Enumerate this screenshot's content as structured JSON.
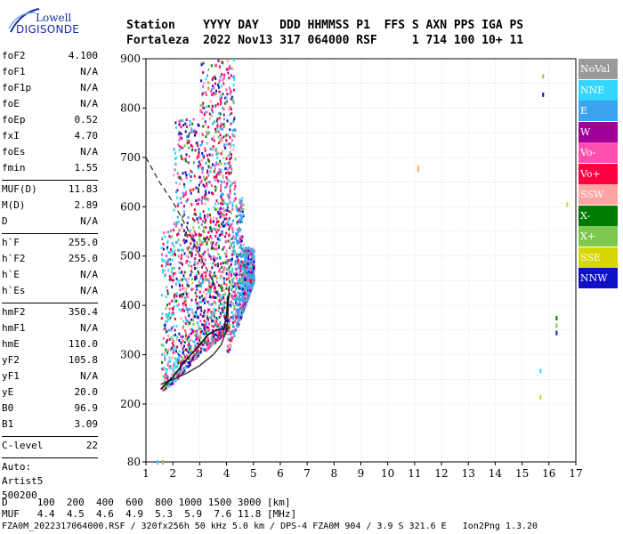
{
  "logo": {
    "line1": "Lowell",
    "line2": "DIGISONDE"
  },
  "header": {
    "line1": "Station    YYYY DAY   DDD HHMMSS P1  FFS S AXN PPS IGA PS",
    "line2": "Fortaleza  2022 Nov13 317 064000 RSF     1 714 100 10+ 11"
  },
  "params": [
    {
      "k": "foF2",
      "v": "4.100"
    },
    {
      "k": "foF1",
      "v": "N/A"
    },
    {
      "k": "foF1p",
      "v": "N/A"
    },
    {
      "k": "foE",
      "v": "N/A"
    },
    {
      "k": "foEp",
      "v": "0.52"
    },
    {
      "k": "fxI",
      "v": "4.70"
    },
    {
      "k": "foEs",
      "v": "N/A"
    },
    {
      "k": "fmin",
      "v": "1.55"
    },
    {
      "k": "MUF(D)",
      "v": "11.83"
    },
    {
      "k": "M(D)",
      "v": "2.89"
    },
    {
      "k": "D",
      "v": "N/A"
    },
    {
      "k": "h`F",
      "v": "255.0"
    },
    {
      "k": "h`F2",
      "v": "255.0"
    },
    {
      "k": "h`E",
      "v": "N/A"
    },
    {
      "k": "h`Es",
      "v": "N/A"
    },
    {
      "k": "hmF2",
      "v": "350.4"
    },
    {
      "k": "hmF1",
      "v": "N/A"
    },
    {
      "k": "hmE",
      "v": "110.0"
    },
    {
      "k": "yF2",
      "v": "105.8"
    },
    {
      "k": "yF1",
      "v": "N/A"
    },
    {
      "k": "yE",
      "v": "20.0"
    },
    {
      "k": "B0",
      "v": "96.9"
    },
    {
      "k": "B1",
      "v": "3.09"
    },
    {
      "k": "C-level",
      "v": "22"
    }
  ],
  "auto": {
    "line1": "Auto:",
    "line2": "Artist5",
    "line3": "500200"
  },
  "legend": [
    {
      "label": "NoVal",
      "color": "#9a9a9a"
    },
    {
      "label": "NNE",
      "color": "#33d6ff"
    },
    {
      "label": "E",
      "color": "#3aa4f0"
    },
    {
      "label": "W",
      "color": "#a0009a"
    },
    {
      "label": "Vo-",
      "color": "#ff4fb0"
    },
    {
      "label": "Vo+",
      "color": "#ff0040"
    },
    {
      "label": "SSW",
      "color": "#ffa3a3"
    },
    {
      "label": "X-",
      "color": "#007a00"
    },
    {
      "label": "X+",
      "color": "#7ec850"
    },
    {
      "label": "SSE",
      "color": "#d6d600"
    },
    {
      "label": "NNW",
      "color": "#1010c8"
    }
  ],
  "bottom": {
    "line1": "D     100  200  400  600  800 1000 1500 3000 [km]",
    "line2": "MUF   4.4  4.5  4.6  4.9  5.3  5.9  7.6 11.8 [MHz]"
  },
  "footer": "FZA0M_2022317064000.RSF / 320fx256h 50 kHz 5.0 km / DPS-4 FZA0M 904 / 3.9 S 321.6 E   Ion2Png 1.3.20",
  "chart_data": {
    "type": "scatter",
    "xlabel": "",
    "ylabel": "",
    "xlim": [
      1,
      17
    ],
    "ylim": [
      80,
      900
    ],
    "xticks": [
      "1",
      "2",
      "3",
      "4",
      "5",
      "6",
      "7",
      "8",
      "9",
      "10",
      "11",
      "12",
      "13",
      "14",
      "15",
      "16",
      "17"
    ],
    "yticks": [
      "80",
      "200",
      "300",
      "400",
      "500",
      "600",
      "700",
      "800",
      "900"
    ],
    "grid": true,
    "legend_position": "right",
    "profile_solid": [
      [
        1.55,
        240
      ],
      [
        2.0,
        250
      ],
      [
        2.5,
        262
      ],
      [
        3.0,
        278
      ],
      [
        3.5,
        300
      ],
      [
        3.8,
        320
      ],
      [
        4.0,
        350
      ],
      [
        4.05,
        380
      ],
      [
        4.08,
        420
      ],
      [
        4.1,
        440
      ]
    ],
    "profile_dashed": [
      [
        1.0,
        700
      ],
      [
        1.5,
        650
      ],
      [
        2.0,
        610
      ],
      [
        2.5,
        560
      ],
      [
        3.0,
        500
      ],
      [
        3.5,
        450
      ],
      [
        3.8,
        400
      ],
      [
        4.0,
        360
      ],
      [
        4.05,
        340
      ]
    ],
    "trace_black": [
      [
        1.55,
        230
      ],
      [
        2.0,
        255
      ],
      [
        2.5,
        290
      ],
      [
        3.0,
        320
      ],
      [
        3.3,
        340
      ],
      [
        3.6,
        350
      ],
      [
        3.9,
        352
      ],
      [
        4.0,
        380
      ],
      [
        4.05,
        420
      ]
    ],
    "scatter_clusters": [
      {
        "name": "main",
        "f_range": [
          1.5,
          5.0
        ],
        "h_range": [
          220,
          900
        ]
      }
    ],
    "isolated_points": [
      {
        "f": 1.4,
        "h": 80,
        "c": "NNE"
      },
      {
        "f": 1.6,
        "h": 80,
        "c": "X+"
      },
      {
        "f": 11.1,
        "h": 680,
        "c": "SSE"
      },
      {
        "f": 11.1,
        "h": 675,
        "c": "SSW"
      },
      {
        "f": 15.65,
        "h": 268,
        "c": "NNE"
      },
      {
        "f": 15.65,
        "h": 215,
        "c": "SSE"
      },
      {
        "f": 15.75,
        "h": 865,
        "c": "X+"
      },
      {
        "f": 15.75,
        "h": 828,
        "c": "NNW"
      },
      {
        "f": 16.25,
        "h": 375,
        "c": "X-"
      },
      {
        "f": 16.25,
        "h": 360,
        "c": "X+"
      },
      {
        "f": 16.25,
        "h": 345,
        "c": "NNW"
      },
      {
        "f": 16.65,
        "h": 605,
        "c": "SSE"
      }
    ]
  }
}
